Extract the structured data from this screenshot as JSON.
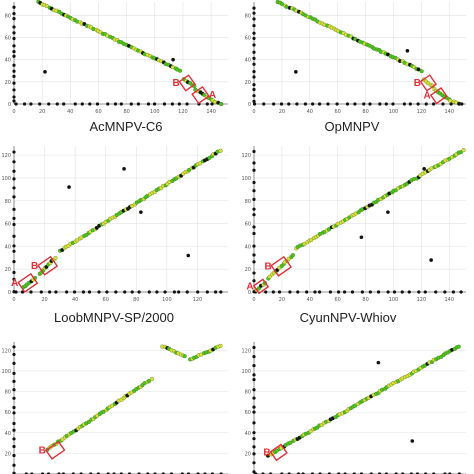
{
  "colors": {
    "green": "#4ec21f",
    "yellow": "#d9df3a",
    "black": "#111111",
    "red": "#e0303a",
    "grid": "#e2e2e2",
    "axis": "#777777"
  },
  "chart_data": [
    {
      "type": "scatter",
      "title": "AcMNPV-C6",
      "xlim": [
        0,
        152
      ],
      "ylim": [
        0,
        92
      ],
      "xticks": [
        0,
        20,
        40,
        60,
        80,
        100,
        120,
        140
      ],
      "yticks": [
        0,
        20,
        40,
        60,
        80
      ],
      "main": [
        {
          "x": [
            17,
            118
          ],
          "y": [
            92,
            30
          ]
        },
        {
          "x": [
            121,
            128
          ],
          "y": [
            22,
            16
          ]
        },
        {
          "x": [
            129,
            140
          ],
          "y": [
            13,
            4
          ]
        },
        {
          "x": [
            141,
            147
          ],
          "y": [
            3,
            0
          ]
        }
      ],
      "off": [
        [
          22,
          29
        ],
        [
          113,
          40
        ]
      ],
      "boxes": [
        {
          "label": "B",
          "x": [
            119,
            127
          ],
          "y": [
            14,
            24
          ],
          "side": "left"
        },
        {
          "label": "A",
          "x": [
            128,
            137
          ],
          "y": [
            3,
            13
          ],
          "side": "right"
        }
      ]
    },
    {
      "type": "scatter",
      "title": "OpMNPV",
      "xlim": [
        0,
        152
      ],
      "ylim": [
        0,
        92
      ],
      "xticks": [
        0,
        20,
        40,
        60,
        80,
        100,
        120,
        140
      ],
      "yticks": [
        0,
        20,
        40,
        60,
        80
      ],
      "main": [
        {
          "x": [
            17,
            120
          ],
          "y": [
            92,
            30
          ]
        },
        {
          "x": [
            122,
            128
          ],
          "y": [
            22,
            16
          ]
        },
        {
          "x": [
            129,
            140
          ],
          "y": [
            13,
            4
          ]
        },
        {
          "x": [
            141,
            147
          ],
          "y": [
            3,
            0
          ]
        }
      ],
      "off": [
        [
          30,
          29
        ],
        [
          110,
          48
        ]
      ],
      "boxes": [
        {
          "label": "B",
          "x": [
            121,
            129
          ],
          "y": [
            14,
            24
          ],
          "side": "left"
        },
        {
          "label": "A",
          "x": [
            128,
            137
          ],
          "y": [
            3,
            12
          ],
          "side": "left"
        }
      ]
    },
    {
      "type": "scatter",
      "title": "LoobMNPV-SP/2000",
      "xlim": [
        0,
        140
      ],
      "ylim": [
        0,
        128
      ],
      "xticks": [
        0,
        20,
        40,
        60,
        80,
        100,
        120
      ],
      "yticks": [
        0,
        20,
        40,
        60,
        80,
        100,
        120
      ],
      "main": [
        {
          "x": [
            6,
            14
          ],
          "y": [
            4,
            12
          ]
        },
        {
          "x": [
            17,
            27
          ],
          "y": [
            16,
            30
          ]
        },
        {
          "x": [
            30,
            135
          ],
          "y": [
            36,
            124
          ]
        }
      ],
      "off": [
        [
          72,
          108
        ],
        [
          36,
          92
        ],
        [
          83,
          70
        ],
        [
          114,
          32
        ]
      ],
      "boxes": [
        {
          "label": "A",
          "x": [
            4,
            14
          ],
          "y": [
            3,
            13
          ],
          "side": "left"
        },
        {
          "label": "B",
          "x": [
            17,
            27
          ],
          "y": [
            18,
            28
          ],
          "side": "left"
        }
      ]
    },
    {
      "type": "scatter",
      "title": "CyunNPV-Whiov",
      "xlim": [
        0,
        152
      ],
      "ylim": [
        0,
        128
      ],
      "xticks": [
        0,
        20,
        40,
        60,
        80,
        100,
        120,
        140
      ],
      "yticks": [
        0,
        20,
        40,
        60,
        80,
        100,
        120
      ],
      "main": [
        {
          "x": [
            2,
            8
          ],
          "y": [
            2,
            8
          ]
        },
        {
          "x": [
            10,
            28
          ],
          "y": [
            12,
            32
          ]
        },
        {
          "x": [
            30,
            150
          ],
          "y": [
            38,
            124
          ]
        }
      ],
      "off": [
        [
          122,
          108
        ],
        [
          96,
          70
        ],
        [
          77,
          48
        ],
        [
          127,
          28
        ]
      ],
      "boxes": [
        {
          "label": "A",
          "x": [
            1,
            9
          ],
          "y": [
            1,
            9
          ],
          "side": "left"
        },
        {
          "label": "B",
          "x": [
            14,
            25
          ],
          "y": [
            17,
            28
          ],
          "side": "left"
        }
      ]
    },
    {
      "type": "scatter",
      "title": "",
      "xlim": [
        0,
        140
      ],
      "ylim": [
        0,
        128
      ],
      "xticks": [],
      "yticks": [
        20,
        40,
        60,
        80,
        100,
        120
      ],
      "main": [
        {
          "x": [
            22,
            90
          ],
          "y": [
            24,
            92
          ]
        },
        {
          "x": [
            97,
            112
          ],
          "y": [
            124,
            114
          ]
        },
        {
          "x": [
            115,
            135
          ],
          "y": [
            111,
            124
          ]
        }
      ],
      "off": [],
      "boxes": [
        {
          "label": "B",
          "x": [
            22,
            32
          ],
          "y": [
            18,
            28
          ],
          "side": "left"
        }
      ]
    },
    {
      "type": "scatter",
      "title": "",
      "xlim": [
        0,
        150
      ],
      "ylim": [
        0,
        128
      ],
      "xticks": [],
      "yticks": [
        20,
        40,
        60,
        80,
        100,
        120
      ],
      "main": [
        {
          "x": [
            10,
            145
          ],
          "y": [
            18,
            124
          ]
        }
      ],
      "off": [
        [
          88,
          108
        ],
        [
          112,
          32
        ]
      ],
      "boxes": [
        {
          "label": "B",
          "x": [
            13,
            22
          ],
          "y": [
            16,
            26
          ],
          "side": "left"
        }
      ]
    }
  ]
}
